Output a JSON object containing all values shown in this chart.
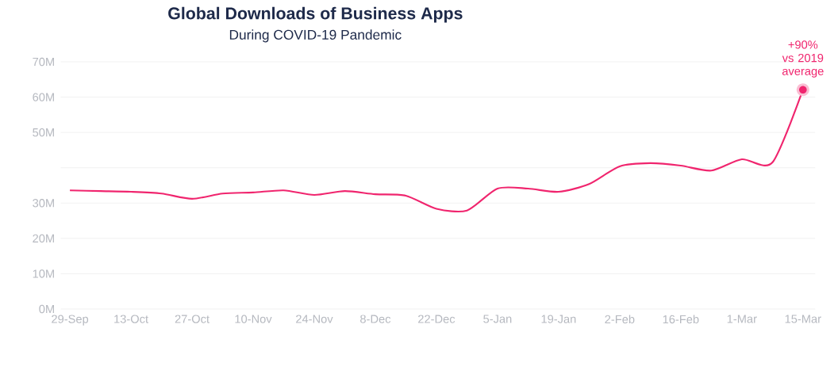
{
  "chart_data": {
    "type": "line",
    "title": "Global Downloads of Business Apps",
    "subtitle": "During COVID-19 Pandemic",
    "categories": [
      "29-Sep",
      null,
      "13-Oct",
      null,
      "27-Oct",
      null,
      "10-Nov",
      null,
      "24-Nov",
      null,
      "8-Dec",
      null,
      "22-Dec",
      null,
      "5-Jan",
      null,
      "19-Jan",
      null,
      "2-Feb",
      null,
      "16-Feb",
      null,
      "1-Mar",
      null,
      "15-Mar"
    ],
    "values": [
      33.6,
      33.4,
      33.2,
      32.7,
      31.2,
      32.7,
      33.0,
      33.6,
      32.3,
      33.4,
      32.5,
      32.1,
      28.4,
      27.9,
      34.1,
      34.1,
      33.2,
      35.4,
      40.4,
      41.3,
      40.6,
      39.2,
      42.4,
      41.5,
      62.1
    ],
    "color": "#f0256e",
    "ylim": [
      0,
      70
    ],
    "yticks": [
      {
        "value": 0,
        "label": "0M"
      },
      {
        "value": 10,
        "label": "10M"
      },
      {
        "value": 20,
        "label": "20M"
      },
      {
        "value": 30,
        "label": "30M"
      },
      {
        "value": 40,
        "label": null
      },
      {
        "value": 50,
        "label": "50M"
      },
      {
        "value": 60,
        "label": "60M"
      },
      {
        "value": 70,
        "label": "70M"
      }
    ],
    "grid": "y",
    "annotations": [
      {
        "text": "+90% vs 2019 average",
        "x": "15-Mar",
        "y": 62.1
      }
    ]
  }
}
